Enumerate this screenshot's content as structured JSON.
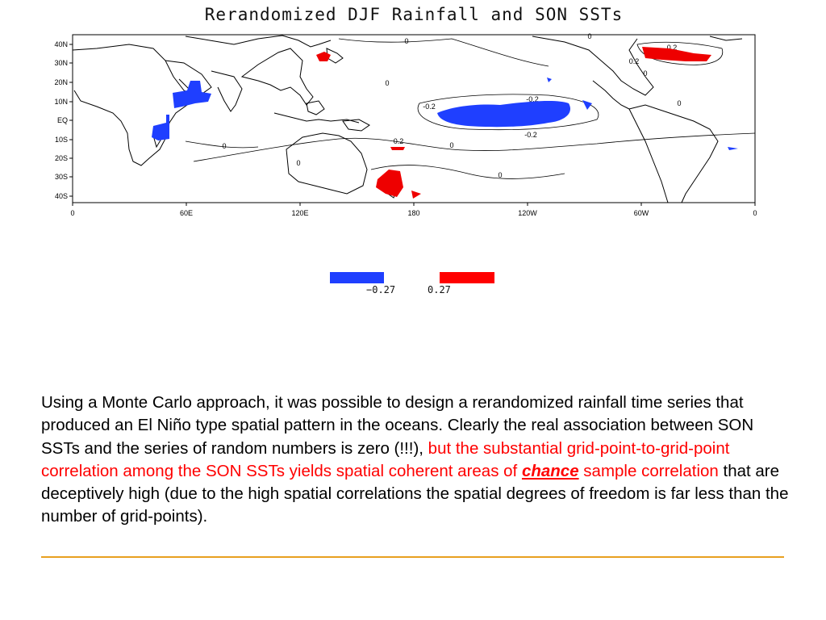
{
  "map": {
    "title": "Rerandomized DJF Rainfall and SON SSTs",
    "lat_labels": [
      "40N",
      "30N",
      "20N",
      "10N",
      "EQ",
      "10S",
      "20S",
      "30S",
      "40S"
    ],
    "lon_labels": [
      "0",
      "60E",
      "120E",
      "180",
      "120W",
      "60W",
      "0"
    ],
    "contour_labels": [
      "0",
      "0",
      "0",
      "0",
      "0",
      "0",
      "0",
      "0",
      "0",
      "-0.2",
      "-0.2",
      "-0.2",
      "0.2",
      "0.2",
      "0.2"
    ],
    "colors": {
      "negative": "#1f3fff",
      "positive": "#ee0000",
      "coast": "#000000",
      "contour": "#000000"
    }
  },
  "legend": {
    "neg_label": "−0.27",
    "pos_label": "0.27",
    "neg_color": "#1f3fff",
    "pos_color": "#ff0000"
  },
  "caption": {
    "part1": "Using a Monte Carlo approach, it was possible to design a rerandomized rainfall time series that produced an El Niño type spatial pattern in the oceans. Clearly the real association between SON SSTs and the series of random numbers is zero (!!!), ",
    "red1": "but the substantial grid-point-to-grid-point correlation among the SON SSTs yields spatial coherent areas of ",
    "chance": "chance",
    "red2": " sample correlation",
    "part2": " that are deceptively high (due to the high spatial correlations the spatial degrees of freedom is far less than the number of grid-points)."
  }
}
